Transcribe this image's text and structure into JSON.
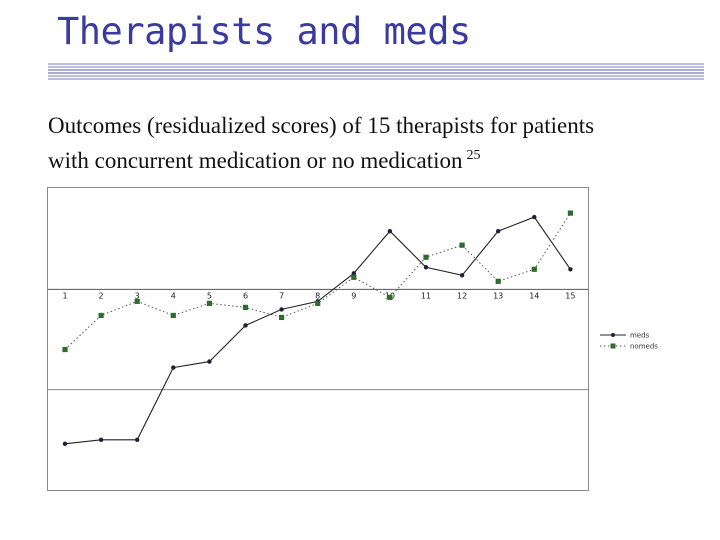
{
  "slide": {
    "title": "Therapists and meds",
    "subtitle_line1": "Outcomes (residualized scores) of 15 therapists for patients",
    "subtitle_line2": "with concurrent medication or no medication",
    "footnote": "25"
  },
  "chart_data": {
    "type": "line",
    "categories": [
      "1",
      "2",
      "3",
      "4",
      "5",
      "6",
      "7",
      "8",
      "9",
      "10",
      "11",
      "12",
      "13",
      "14",
      "15"
    ],
    "series": [
      {
        "name": "meds",
        "color": "#1f1f3a",
        "line_style": "solid",
        "marker": "circle",
        "values": [
          -7.7,
          -7.5,
          -7.5,
          -3.9,
          -3.6,
          -1.8,
          -1.0,
          -0.6,
          0.8,
          2.9,
          1.1,
          0.7,
          2.9,
          3.6,
          1.0
        ]
      },
      {
        "name": "nomeds",
        "color": "#2f6b2f",
        "line_style": "dotted",
        "marker": "square",
        "values": [
          -3.0,
          -1.3,
          -0.6,
          -1.3,
          -0.7,
          -0.9,
          -1.4,
          -0.7,
          0.6,
          -0.4,
          1.6,
          2.2,
          0.4,
          1.0,
          3.8
        ]
      }
    ],
    "ylim": [
      -10,
      5
    ],
    "x_axis_at": 0,
    "grid": "horizontal",
    "legend_position": "right",
    "title": "",
    "xlabel": "",
    "ylabel": ""
  }
}
